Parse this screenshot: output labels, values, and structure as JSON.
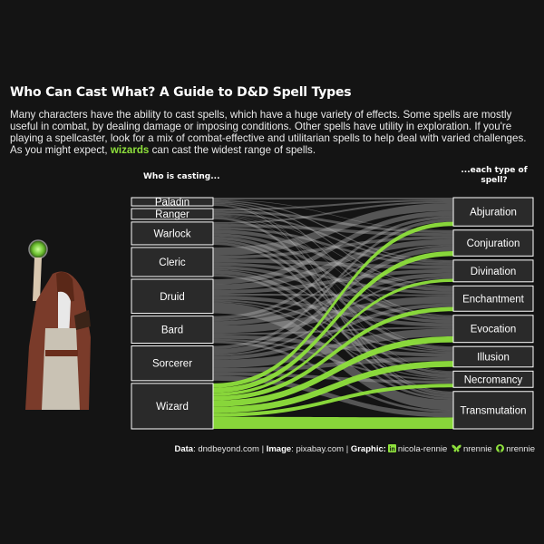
{
  "title": "Who Can Cast What? A Guide to D&D Spell Types",
  "subtitle": {
    "before": "Many characters have the ability to cast spells, which have a huge variety of effects. Some spells are mostly useful in combat, by dealing damage or imposing conditions. Other spells have utility in exploration. If you're playing a spellcaster, look for a mix of combat-effective and utilitarian spells to help deal with varied challenges. As you might expect, ",
    "highlight": "wizards",
    "after": " can cast the widest range of spells."
  },
  "left_header": "Who is casting...",
  "right_header_line1": "...each type of",
  "right_header_line2": "spell?",
  "caption": {
    "data_label": "Data",
    "data_value": ": dndbeyond.com | ",
    "image_label": "Image",
    "image_value": ": pixabay.com | ",
    "graphic_label": "Graphic:",
    "linkedin_handle": "nicola-rennie",
    "bluesky_handle": "nrennie",
    "github_handle": "nrennie"
  },
  "colors": {
    "background": "#141414",
    "highlight": "#8ee03c",
    "flow_grey": "#b0b0b0",
    "node_fill": "#2a2a2a"
  },
  "chart_data": {
    "type": "sankey",
    "sources": [
      "Paladin",
      "Ranger",
      "Warlock",
      "Cleric",
      "Druid",
      "Bard",
      "Sorcerer",
      "Wizard"
    ],
    "targets": [
      "Abjuration",
      "Conjuration",
      "Divination",
      "Enchantment",
      "Evocation",
      "Illusion",
      "Necromancy",
      "Transmutation"
    ],
    "highlight_source": "Wizard",
    "links": [
      {
        "source": "Paladin",
        "values": [
          3,
          1,
          2,
          2,
          2,
          0,
          1,
          2
        ]
      },
      {
        "source": "Ranger",
        "values": [
          3,
          4,
          3,
          1,
          1,
          1,
          0,
          4
        ]
      },
      {
        "source": "Warlock",
        "values": [
          3,
          5,
          4,
          6,
          5,
          5,
          4,
          4
        ]
      },
      {
        "source": "Cleric",
        "values": [
          13,
          5,
          6,
          5,
          5,
          2,
          6,
          4
        ]
      },
      {
        "source": "Druid",
        "values": [
          8,
          9,
          6,
          3,
          6,
          3,
          2,
          17
        ]
      },
      {
        "source": "Bard",
        "values": [
          5,
          3,
          7,
          12,
          3,
          6,
          3,
          4
        ]
      },
      {
        "source": "Sorcerer",
        "values": [
          5,
          8,
          3,
          6,
          13,
          7,
          5,
          8
        ]
      },
      {
        "source": "Wizard",
        "values": [
          7,
          8,
          5,
          7,
          10,
          10,
          6,
          19
        ]
      }
    ]
  }
}
